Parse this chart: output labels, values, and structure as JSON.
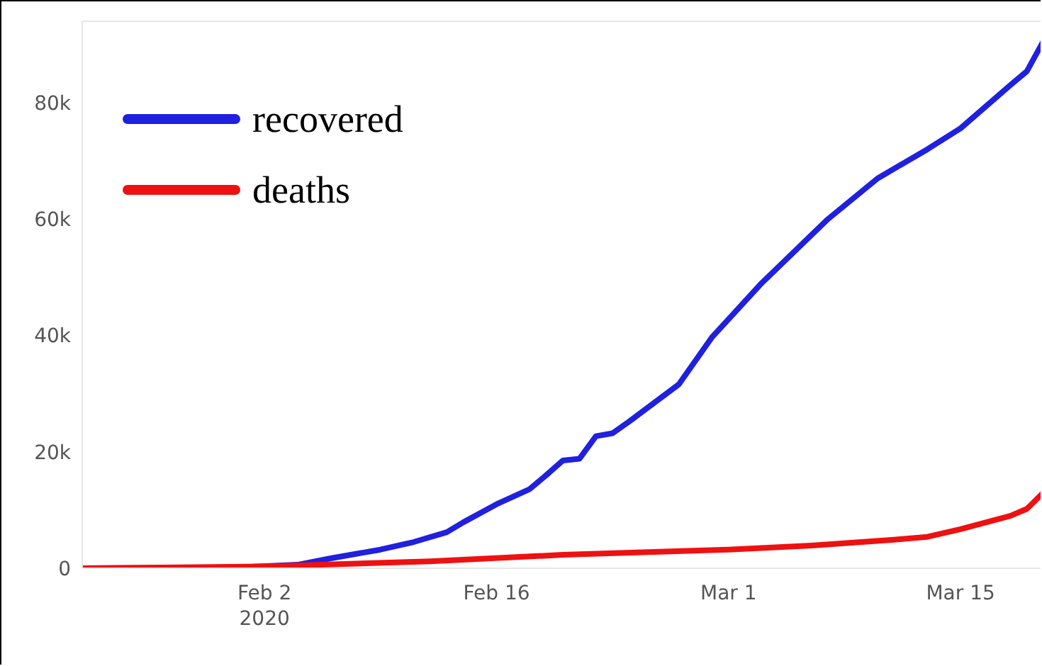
{
  "chart_data": {
    "type": "line",
    "xlim": [
      "2020-01-22",
      "2020-03-20"
    ],
    "xticks": [
      {
        "value": "2020-02-02",
        "label": "Feb 2\n2020"
      },
      {
        "value": "2020-02-16",
        "label": "Feb 16"
      },
      {
        "value": "2020-03-01",
        "label": "Mar 1"
      },
      {
        "value": "2020-03-15",
        "label": "Mar 15"
      }
    ],
    "ylim": [
      0,
      94000
    ],
    "yticks": [
      0,
      {
        "value": 20000,
        "label": "20k"
      },
      {
        "value": 40000,
        "label": "40k"
      },
      {
        "value": 60000,
        "label": "60k"
      },
      {
        "value": 80000,
        "label": "80k"
      }
    ],
    "grid": false,
    "legend": "top left",
    "marker": "none",
    "line_style": "solid",
    "series": [
      {
        "name": "recovered",
        "color": "#2020e0",
        "x": [
          "2020-01-22",
          "2020-01-31",
          "2020-02-04",
          "2020-02-06",
          "2020-02-09",
          "2020-02-11",
          "2020-02-13",
          "2020-02-14",
          "2020-02-16",
          "2020-02-18",
          "2020-02-19",
          "2020-02-20",
          "2020-02-21",
          "2020-02-22",
          "2020-02-23",
          "2020-02-24",
          "2020-02-27",
          "2020-02-29",
          "2020-03-03",
          "2020-03-07",
          "2020-03-10",
          "2020-03-13",
          "2020-03-15",
          "2020-03-18",
          "2020-03-19",
          "2020-03-20"
        ],
        "values": [
          0,
          100,
          600,
          1700,
          3200,
          4500,
          6200,
          7900,
          11000,
          13600,
          16000,
          18500,
          18800,
          22700,
          23200,
          25200,
          31600,
          39700,
          49000,
          60000,
          67000,
          72000,
          75600,
          83000,
          85400,
          90600
        ]
      },
      {
        "name": "deaths",
        "color": "#ee1111",
        "x": [
          "2020-01-22",
          "2020-02-02",
          "2020-02-12",
          "2020-02-20",
          "2020-03-01",
          "2020-03-06",
          "2020-03-11",
          "2020-03-13",
          "2020-03-15",
          "2020-03-18",
          "2020-03-19",
          "2020-03-20"
        ],
        "values": [
          0,
          300,
          1200,
          2300,
          3200,
          3900,
          4900,
          5400,
          6700,
          9000,
          10200,
          13000
        ]
      }
    ]
  }
}
